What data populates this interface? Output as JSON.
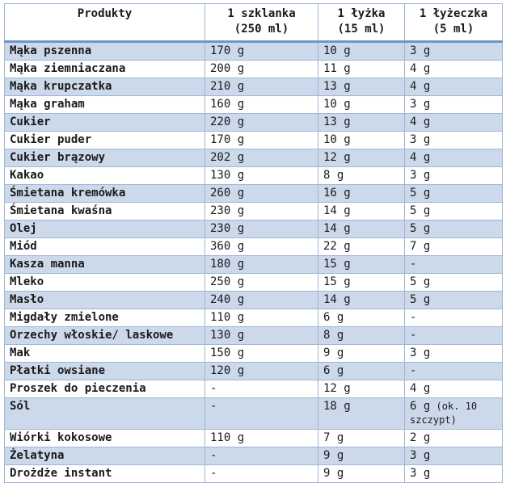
{
  "colors": {
    "band_row": "#ccd9ea",
    "cell_border": "#9fb6d6",
    "header_underline": "#6d96c4",
    "text": "#1a1a1a",
    "background": "#ffffff"
  },
  "table": {
    "columns": [
      {
        "line1": "Produkty",
        "line2": ""
      },
      {
        "line1": "1 szklanka",
        "line2": "(250 ml)"
      },
      {
        "line1": "1 łyżka",
        "line2": "(15 ml)"
      },
      {
        "line1": "1 łyżeczka",
        "line2": "(5 ml)"
      }
    ],
    "rows": [
      {
        "product": "Mąka pszenna",
        "cup": "170 g",
        "spoon": "10 g",
        "tea": "3 g"
      },
      {
        "product": "Mąka ziemniaczana",
        "cup": "200 g",
        "spoon": "11 g",
        "tea": "4 g"
      },
      {
        "product": "Mąka krupczatka",
        "cup": "210 g",
        "spoon": "13 g",
        "tea": "4 g"
      },
      {
        "product": "Mąka graham",
        "cup": "160 g",
        "spoon": "10 g",
        "tea": "3 g"
      },
      {
        "product": "Cukier",
        "cup": "220 g",
        "spoon": "13 g",
        "tea": "4 g"
      },
      {
        "product": "Cukier puder",
        "cup": "170 g",
        "spoon": "10 g",
        "tea": "3 g"
      },
      {
        "product": "Cukier brązowy",
        "cup": "202 g",
        "spoon": "12 g",
        "tea": "4 g"
      },
      {
        "product": "Kakao",
        "cup": "130 g",
        "spoon": "8 g",
        "tea": "3 g"
      },
      {
        "product": "Śmietana kremówka",
        "cup": "260 g",
        "spoon": "16 g",
        "tea": "5 g"
      },
      {
        "product": "Śmietana kwaśna",
        "cup": "230 g",
        "spoon": "14 g",
        "tea": "5 g"
      },
      {
        "product": "Olej",
        "cup": "230 g",
        "spoon": "14 g",
        "tea": "5 g"
      },
      {
        "product": "Miód",
        "cup": "360 g",
        "spoon": "22 g",
        "tea": "7 g"
      },
      {
        "product": "Kasza manna",
        "cup": "180 g",
        "spoon": "15 g",
        "tea": "-"
      },
      {
        "product": "Mleko",
        "cup": "250 g",
        "spoon": "15 g",
        "tea": "5 g"
      },
      {
        "product": "Masło",
        "cup": "240 g",
        "spoon": "14 g",
        "tea": "5 g"
      },
      {
        "product": "Migdały zmielone",
        "cup": "110 g",
        "spoon": "6 g",
        "tea": "-"
      },
      {
        "product": "Orzechy włoskie/ laskowe",
        "cup": "130 g",
        "spoon": "8 g",
        "tea": "-"
      },
      {
        "product": "Mak",
        "cup": "150 g",
        "spoon": "9 g",
        "tea": "3 g"
      },
      {
        "product": "Płatki owsiane",
        "cup": "120 g",
        "spoon": "6 g",
        "tea": "-"
      },
      {
        "product": "Proszek do pieczenia",
        "cup": "-",
        "spoon": "12 g",
        "tea": "4 g"
      },
      {
        "product": "Sól",
        "cup": "-",
        "spoon": "18 g",
        "tea": "6 g",
        "tea_note": "(ok. 10 szczypt)"
      },
      {
        "product": "Wiórki kokosowe",
        "cup": "110 g",
        "spoon": "7 g",
        "tea": "2 g"
      },
      {
        "product": "Żelatyna",
        "cup": "-",
        "spoon": "9 g",
        "tea": "3 g"
      },
      {
        "product": "Drożdże instant",
        "cup": "-",
        "spoon": "9 g",
        "tea": "3 g"
      }
    ]
  }
}
